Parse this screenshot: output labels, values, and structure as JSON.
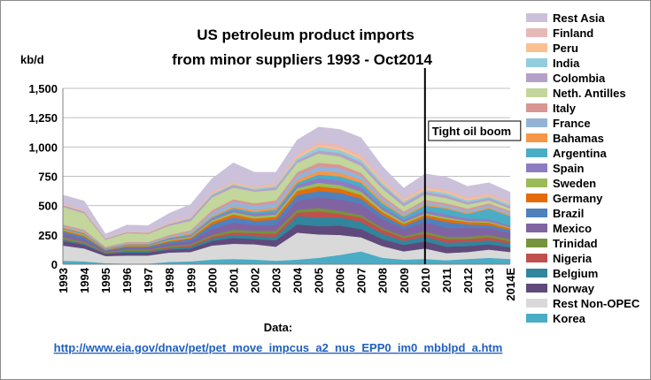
{
  "chart_data": {
    "type": "area",
    "stacked": true,
    "title_line1": "US petroleum product imports",
    "title_line2": "from minor suppliers 1993 - Oct2014",
    "ylabel": "kb/d",
    "xlabel": "",
    "ylim": [
      0,
      1500
    ],
    "yticks": [
      "0",
      "250",
      "500",
      "750",
      "1,000",
      "1,250",
      "1,500"
    ],
    "ytick_values": [
      0,
      250,
      500,
      750,
      1000,
      1250,
      1500
    ],
    "grid": true,
    "legend_position": "right",
    "categories": [
      "1993",
      "1994",
      "1995",
      "1996",
      "1997",
      "1998",
      "1999",
      "2000",
      "2001",
      "2002",
      "2003",
      "2004",
      "2005",
      "2006",
      "2007",
      "2008",
      "2009",
      "2010",
      "2011",
      "2012",
      "2013",
      "2014E"
    ],
    "annotation": {
      "label": "Tight oil boom",
      "at_category": "2010"
    },
    "series": [
      {
        "name": "Korea",
        "color": "#4bacc6",
        "values": [
          30,
          25,
          10,
          5,
          5,
          20,
          25,
          40,
          45,
          40,
          30,
          40,
          55,
          80,
          110,
          55,
          40,
          45,
          35,
          45,
          55,
          45
        ]
      },
      {
        "name": "Rest Non-OPEC",
        "color": "#d9d9d9",
        "values": [
          130,
          110,
          60,
          70,
          70,
          80,
          80,
          120,
          130,
          130,
          120,
          230,
          200,
          170,
          120,
          100,
          70,
          90,
          60,
          60,
          70,
          60
        ]
      },
      {
        "name": "Norway",
        "color": "#604a7b",
        "values": [
          40,
          30,
          20,
          25,
          25,
          25,
          30,
          40,
          50,
          45,
          55,
          70,
          70,
          80,
          70,
          60,
          55,
          60,
          55,
          50,
          45,
          40
        ]
      },
      {
        "name": "Belgium",
        "color": "#31859c",
        "values": [
          10,
          10,
          5,
          10,
          10,
          10,
          15,
          20,
          25,
          25,
          30,
          70,
          75,
          70,
          60,
          45,
          35,
          40,
          35,
          35,
          35,
          30
        ]
      },
      {
        "name": "Nigeria",
        "color": "#c0504d",
        "values": [
          5,
          5,
          3,
          5,
          5,
          10,
          10,
          15,
          20,
          25,
          25,
          30,
          50,
          30,
          40,
          35,
          25,
          25,
          30,
          25,
          25,
          20
        ]
      },
      {
        "name": "Trinidad",
        "color": "#77933c",
        "values": [
          15,
          10,
          5,
          10,
          10,
          10,
          10,
          15,
          25,
          20,
          25,
          25,
          30,
          25,
          20,
          15,
          15,
          20,
          20,
          20,
          20,
          20
        ]
      },
      {
        "name": "Mexico",
        "color": "#8064a2",
        "values": [
          30,
          25,
          10,
          15,
          15,
          20,
          25,
          50,
          60,
          50,
          50,
          80,
          90,
          100,
          95,
          75,
          60,
          80,
          75,
          75,
          60,
          50
        ]
      },
      {
        "name": "Brazil",
        "color": "#4f81bd",
        "values": [
          20,
          20,
          5,
          10,
          10,
          15,
          20,
          40,
          45,
          35,
          45,
          45,
          55,
          55,
          45,
          35,
          25,
          40,
          50,
          30,
          25,
          25
        ]
      },
      {
        "name": "Germany",
        "color": "#e46c0a",
        "values": [
          10,
          10,
          5,
          5,
          5,
          10,
          10,
          20,
          25,
          20,
          25,
          35,
          40,
          35,
          30,
          25,
          20,
          20,
          25,
          20,
          20,
          15
        ]
      },
      {
        "name": "Sweden",
        "color": "#9bbb59",
        "values": [
          10,
          10,
          5,
          5,
          5,
          10,
          10,
          15,
          20,
          20,
          20,
          25,
          30,
          30,
          30,
          20,
          15,
          15,
          15,
          10,
          10,
          10
        ]
      },
      {
        "name": "Spain",
        "color": "#8e7cc3",
        "values": [
          5,
          5,
          3,
          5,
          5,
          10,
          10,
          15,
          20,
          20,
          20,
          25,
          40,
          40,
          40,
          25,
          20,
          25,
          25,
          20,
          20,
          15
        ]
      },
      {
        "name": "Argentina",
        "color": "#4bacc6",
        "values": [
          5,
          5,
          3,
          5,
          5,
          5,
          10,
          10,
          15,
          15,
          20,
          20,
          30,
          35,
          35,
          30,
          25,
          40,
          50,
          40,
          90,
          80
        ]
      },
      {
        "name": "Bahamas",
        "color": "#f79646",
        "values": [
          10,
          10,
          5,
          5,
          5,
          5,
          10,
          10,
          15,
          15,
          20,
          25,
          30,
          30,
          25,
          20,
          10,
          15,
          10,
          10,
          10,
          10
        ]
      },
      {
        "name": "France",
        "color": "#95b3d7",
        "values": [
          10,
          10,
          5,
          10,
          10,
          10,
          15,
          30,
          40,
          40,
          40,
          40,
          40,
          40,
          35,
          25,
          20,
          20,
          20,
          20,
          20,
          20
        ]
      },
      {
        "name": "Italy",
        "color": "#d99694",
        "values": [
          10,
          10,
          5,
          5,
          5,
          10,
          10,
          20,
          20,
          20,
          20,
          25,
          30,
          30,
          25,
          20,
          15,
          15,
          15,
          15,
          15,
          15
        ]
      },
      {
        "name": "Neth. Antilles",
        "color": "#c3d69b",
        "values": [
          150,
          140,
          60,
          75,
          70,
          80,
          80,
          110,
          100,
          100,
          90,
          80,
          80,
          70,
          60,
          60,
          45,
          45,
          45,
          35,
          25,
          20
        ]
      },
      {
        "name": "Colombia",
        "color": "#b3a2c7",
        "values": [
          15,
          15,
          10,
          10,
          10,
          15,
          20,
          20,
          20,
          15,
          20,
          20,
          25,
          30,
          30,
          30,
          25,
          25,
          25,
          20,
          20,
          20
        ]
      },
      {
        "name": "India",
        "color": "#92cddc",
        "values": [
          0,
          0,
          0,
          0,
          0,
          0,
          5,
          10,
          10,
          10,
          15,
          20,
          30,
          25,
          25,
          20,
          15,
          15,
          20,
          15,
          15,
          15
        ]
      },
      {
        "name": "Peru",
        "color": "#fac090",
        "values": [
          5,
          5,
          3,
          5,
          5,
          5,
          5,
          10,
          10,
          10,
          10,
          15,
          20,
          20,
          20,
          15,
          15,
          15,
          15,
          15,
          10,
          10
        ]
      },
      {
        "name": "Finland",
        "color": "#e6b9b8",
        "values": [
          10,
          10,
          5,
          5,
          5,
          5,
          10,
          10,
          10,
          10,
          15,
          20,
          25,
          25,
          25,
          20,
          15,
          15,
          15,
          15,
          15,
          15
        ]
      },
      {
        "name": "Rest Asia",
        "color": "#ccc1da",
        "values": [
          70,
          75,
          30,
          50,
          50,
          80,
          100,
          110,
          160,
          120,
          90,
          120,
          125,
          130,
          140,
          105,
          85,
          105,
          105,
          90,
          90,
          80
        ]
      }
    ],
    "source_label": "Data:",
    "source_url": "http://www.eia.gov/dnav/pet/pet_move_impcus_a2_nus_EPP0_im0_mbblpd_a.htm"
  }
}
